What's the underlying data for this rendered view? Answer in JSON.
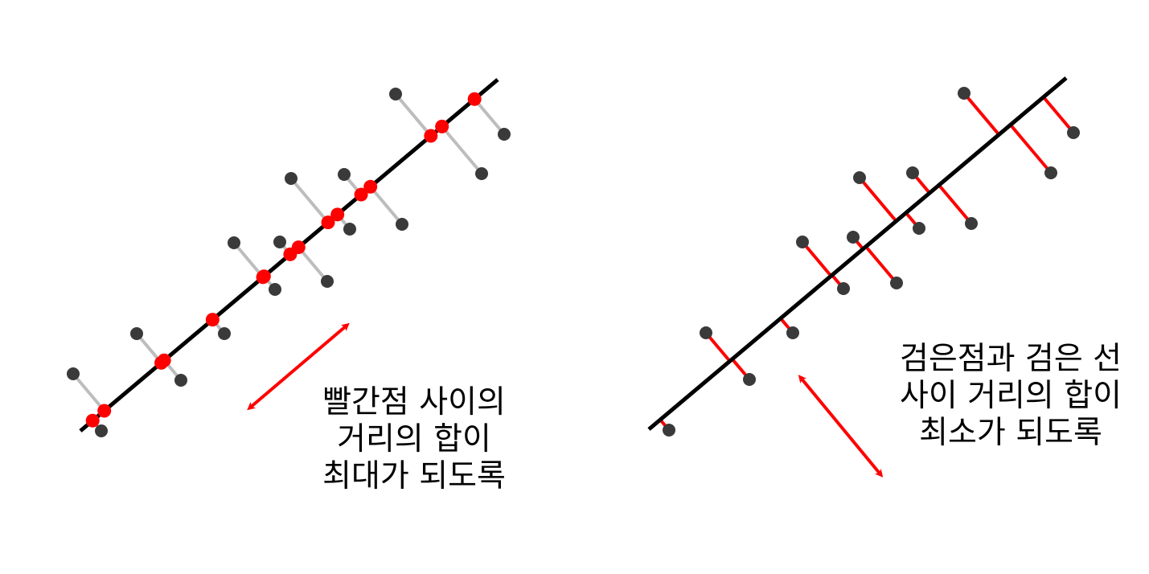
{
  "colors": {
    "axis_line": "#000000",
    "data_point": "#3a3a3a",
    "projected_point": "#ff0000",
    "projection_segment_left": "#bdbdbd",
    "distance_segment_right": "#ff0000",
    "arrow": "#ff0000"
  },
  "panels": [
    {
      "name": "maximize-variance-panel",
      "caption_lines": [
        "빨간점 사이의",
        "거리의 합이",
        "최대가 되도록"
      ]
    },
    {
      "name": "minimize-distance-panel",
      "caption_lines": [
        "검은점과 검은 선",
        "사이 거리의 합이",
        "최소가 되도록"
      ]
    }
  ]
}
